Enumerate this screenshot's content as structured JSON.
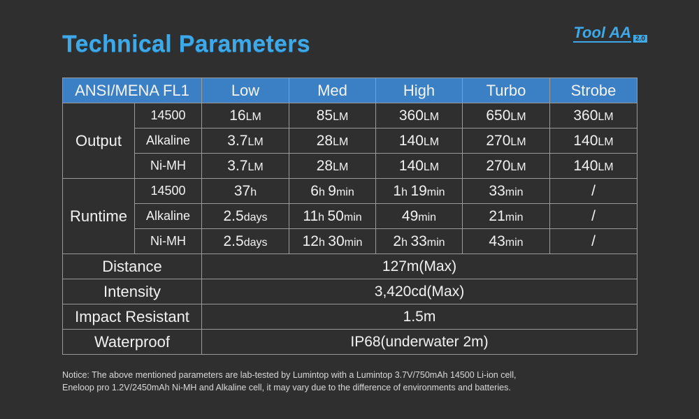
{
  "header": {
    "title": "Technical Parameters",
    "brand": "Tool AA",
    "version": "2.0"
  },
  "table": {
    "corner": "ANSI/MENA FL1",
    "modes": [
      "Low",
      "Med",
      "High",
      "Turbo",
      "Strobe"
    ],
    "groups": [
      {
        "label": "Output",
        "rows": [
          {
            "sub": "14500",
            "cells": [
              [
                "16",
                "LM"
              ],
              [
                "85",
                "LM"
              ],
              [
                "360",
                "LM"
              ],
              [
                "650",
                "LM"
              ],
              [
                "360",
                "LM"
              ]
            ]
          },
          {
            "sub": "Alkaline",
            "cells": [
              [
                "3.7",
                "LM"
              ],
              [
                "28",
                "LM"
              ],
              [
                "140",
                "LM"
              ],
              [
                "270",
                "LM"
              ],
              [
                "140",
                "LM"
              ]
            ]
          },
          {
            "sub": "Ni-MH",
            "cells": [
              [
                "3.7",
                "LM"
              ],
              [
                "28",
                "LM"
              ],
              [
                "140",
                "LM"
              ],
              [
                "270",
                "LM"
              ],
              [
                "140",
                "LM"
              ]
            ]
          }
        ]
      },
      {
        "label": "Runtime",
        "rows": [
          {
            "sub": "14500",
            "cells": [
              [
                "37",
                "h"
              ],
              [
                "6",
                "h ",
                "9",
                "min"
              ],
              [
                "1",
                "h ",
                "19",
                "min"
              ],
              [
                "33",
                "min"
              ],
              [
                "/"
              ]
            ]
          },
          {
            "sub": "Alkaline",
            "cells": [
              [
                "2.5",
                "days"
              ],
              [
                "11",
                "h ",
                "50",
                "min"
              ],
              [
                "49",
                "min"
              ],
              [
                "21",
                "min"
              ],
              [
                "/"
              ]
            ]
          },
          {
            "sub": "Ni-MH",
            "cells": [
              [
                "2.5",
                "days"
              ],
              [
                "12",
                "h ",
                "30",
                "min"
              ],
              [
                "2",
                "h ",
                "33",
                "min"
              ],
              [
                "43",
                "min"
              ],
              [
                "/"
              ]
            ]
          }
        ]
      }
    ],
    "spec_rows": [
      {
        "label": "Distance",
        "value": "127m(Max)"
      },
      {
        "label": "Intensity",
        "value": "3,420cd(Max)"
      },
      {
        "label": "Impact Resistant",
        "value": "1.5m"
      },
      {
        "label": "Waterproof",
        "value": "IP68(underwater 2m)"
      }
    ]
  },
  "notice": [
    "Notice: The above mentioned parameters are lab-tested by Lumintop with a Lumintop 3.7V/750mAh 14500 Li-ion cell,",
    "Eneloop pro 1.2V/2450mAh Ni-MH and Alkaline cell, it may vary due to the difference of environments and batteries."
  ]
}
